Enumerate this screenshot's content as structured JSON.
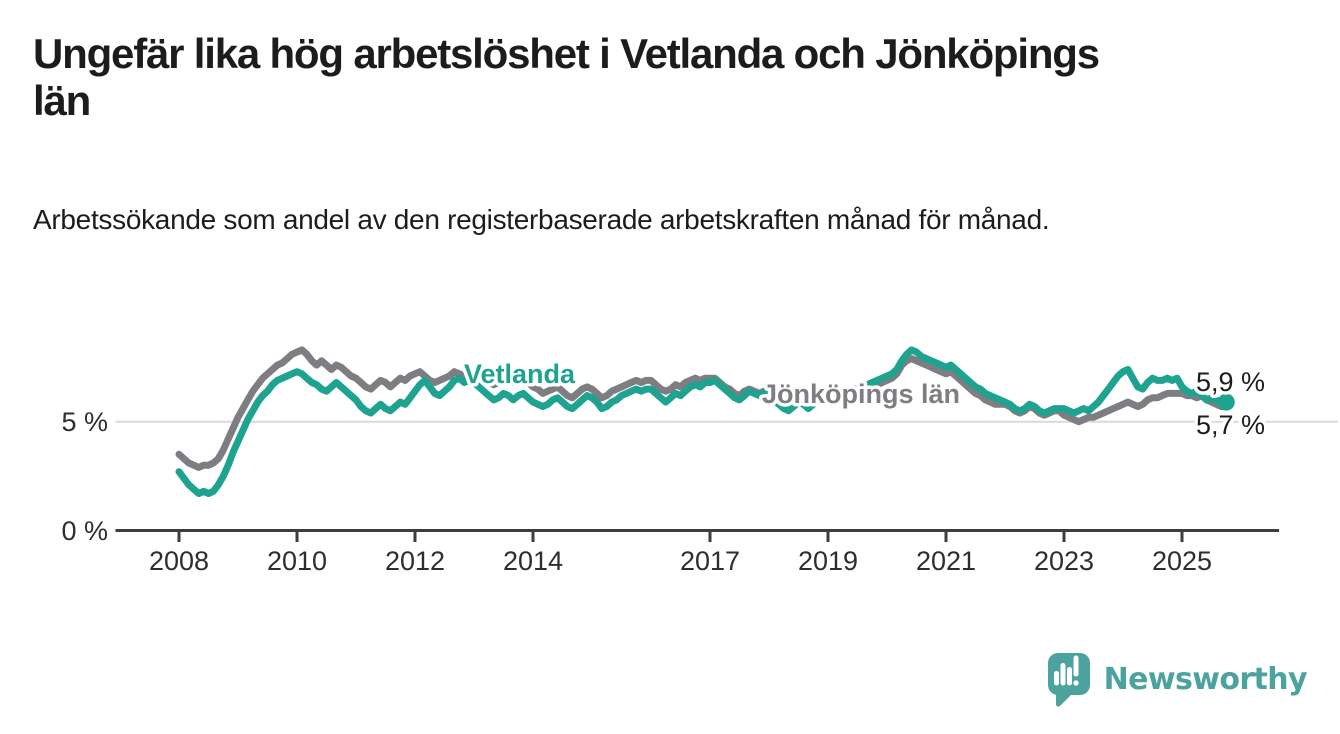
{
  "header": {
    "title": "Ungefär lika hög arbetslöshet i Vetlanda och Jönköpings län",
    "subtitle": "Arbetssökande som andel av den registerbaserade arbetskraften månad för månad."
  },
  "chart_data": {
    "type": "line",
    "unit": "%",
    "frequency": "monthly",
    "start": "2008-01",
    "end": "2025-10",
    "grid": "horizontal-gridline-at-5-only",
    "legend_position": "inline-labels-on-lines",
    "ylim": [
      0,
      9.2
    ],
    "x_axis_years": [
      2008,
      2025
    ],
    "x_ticks": [
      {
        "year": 2008,
        "label": "2008"
      },
      {
        "year": 2010,
        "label": "2010"
      },
      {
        "year": 2012,
        "label": "2012"
      },
      {
        "year": 2014,
        "label": "2014"
      },
      {
        "year": 2017,
        "label": "2017"
      },
      {
        "year": 2019,
        "label": "2019"
      },
      {
        "year": 2021,
        "label": "2021"
      },
      {
        "year": 2023,
        "label": "2023"
      },
      {
        "year": 2025,
        "label": "2025"
      }
    ],
    "y_ticks": [
      {
        "value": 0,
        "label": "0 %"
      },
      {
        "value": 5,
        "label": "5 %"
      }
    ],
    "series": [
      {
        "name": "Jönköpings län",
        "color": "#7d7d82",
        "end_label": "5,7 %",
        "values": [
          3.5,
          3.3,
          3.1,
          3.0,
          2.9,
          3.0,
          3.0,
          3.1,
          3.3,
          3.7,
          4.2,
          4.7,
          5.2,
          5.6,
          6.0,
          6.4,
          6.7,
          7.0,
          7.2,
          7.4,
          7.6,
          7.7,
          7.9,
          8.1,
          8.2,
          8.3,
          8.1,
          7.8,
          7.6,
          7.8,
          7.6,
          7.4,
          7.6,
          7.5,
          7.3,
          7.1,
          7.0,
          6.8,
          6.6,
          6.5,
          6.7,
          6.9,
          6.8,
          6.6,
          6.8,
          7.0,
          6.9,
          7.1,
          7.2,
          7.3,
          7.1,
          6.9,
          6.8,
          6.9,
          7.0,
          7.1,
          7.3,
          7.2,
          7.1,
          7.2,
          7.3,
          7.1,
          7.0,
          6.8,
          6.7,
          6.8,
          7.0,
          6.9,
          6.8,
          6.9,
          7.0,
          6.8,
          6.6,
          6.5,
          6.3,
          6.4,
          6.5,
          6.6,
          6.4,
          6.2,
          6.1,
          6.3,
          6.5,
          6.6,
          6.5,
          6.3,
          6.1,
          6.2,
          6.4,
          6.5,
          6.6,
          6.7,
          6.8,
          6.9,
          6.8,
          6.9,
          6.9,
          6.7,
          6.5,
          6.4,
          6.5,
          6.7,
          6.6,
          6.8,
          6.9,
          7.0,
          6.9,
          7.0,
          7.0,
          7.0,
          6.8,
          6.6,
          6.5,
          6.3,
          6.2,
          6.4,
          6.5,
          6.4,
          6.3,
          6.4,
          6.3,
          6.1,
          6.0,
          5.9,
          5.8,
          6.0,
          6.1,
          6.0,
          5.9,
          6.0,
          6.2,
          6.3,
          6.3,
          6.2,
          6.2,
          6.3,
          6.4,
          6.5,
          6.4,
          6.4,
          6.5,
          6.6,
          6.7,
          6.8,
          6.9,
          7.0,
          7.2,
          7.6,
          7.8,
          7.9,
          7.8,
          7.7,
          7.6,
          7.5,
          7.4,
          7.3,
          7.2,
          7.3,
          7.1,
          6.9,
          6.7,
          6.5,
          6.3,
          6.2,
          6.0,
          5.9,
          5.8,
          5.8,
          5.8,
          5.7,
          5.5,
          5.4,
          5.5,
          5.7,
          5.6,
          5.4,
          5.3,
          5.4,
          5.5,
          5.5,
          5.3,
          5.2,
          5.1,
          5.0,
          5.1,
          5.2,
          5.2,
          5.3,
          5.4,
          5.5,
          5.6,
          5.7,
          5.8,
          5.9,
          5.8,
          5.7,
          5.8,
          6.0,
          6.1,
          6.1,
          6.2,
          6.3,
          6.3,
          6.3,
          6.3,
          6.2,
          6.2,
          6.1,
          6.2,
          6.0,
          5.9,
          5.8,
          5.7,
          5.7
        ]
      },
      {
        "name": "Vetlanda",
        "color": "#1ea390",
        "end_label": "5,9 %",
        "values": [
          2.7,
          2.4,
          2.1,
          1.9,
          1.7,
          1.8,
          1.7,
          1.8,
          2.1,
          2.5,
          3.0,
          3.6,
          4.1,
          4.6,
          5.1,
          5.5,
          5.9,
          6.2,
          6.4,
          6.7,
          6.9,
          7.0,
          7.1,
          7.2,
          7.3,
          7.2,
          7.0,
          6.8,
          6.7,
          6.5,
          6.4,
          6.6,
          6.8,
          6.6,
          6.4,
          6.2,
          6.0,
          5.7,
          5.5,
          5.4,
          5.6,
          5.8,
          5.6,
          5.5,
          5.7,
          5.9,
          5.8,
          6.1,
          6.4,
          6.7,
          6.9,
          6.6,
          6.3,
          6.2,
          6.4,
          6.6,
          6.9,
          7.0,
          6.8,
          6.9,
          6.8,
          6.6,
          6.4,
          6.2,
          6.0,
          6.1,
          6.3,
          6.2,
          6.0,
          6.2,
          6.3,
          6.1,
          5.9,
          5.8,
          5.7,
          5.8,
          6.0,
          6.1,
          5.9,
          5.7,
          5.6,
          5.8,
          6.0,
          6.2,
          6.1,
          5.9,
          5.6,
          5.7,
          5.9,
          6.0,
          6.2,
          6.3,
          6.4,
          6.5,
          6.4,
          6.5,
          6.5,
          6.3,
          6.1,
          5.9,
          6.1,
          6.3,
          6.2,
          6.4,
          6.6,
          6.7,
          6.6,
          6.8,
          6.8,
          6.9,
          6.7,
          6.5,
          6.3,
          6.1,
          6.0,
          6.2,
          6.4,
          6.3,
          6.2,
          6.3,
          6.2,
          6.0,
          5.8,
          5.6,
          5.5,
          5.7,
          5.9,
          5.8,
          5.6,
          5.8,
          6.0,
          6.1,
          6.2,
          6.2,
          6.3,
          6.3,
          6.4,
          6.5,
          6.5,
          6.6,
          6.7,
          6.8,
          6.9,
          7.0,
          7.1,
          7.2,
          7.4,
          7.8,
          8.1,
          8.3,
          8.2,
          8.0,
          7.9,
          7.8,
          7.7,
          7.6,
          7.5,
          7.6,
          7.4,
          7.2,
          7.0,
          6.8,
          6.6,
          6.5,
          6.3,
          6.2,
          6.1,
          6.0,
          5.9,
          5.8,
          5.6,
          5.5,
          5.6,
          5.8,
          5.7,
          5.5,
          5.4,
          5.5,
          5.6,
          5.6,
          5.6,
          5.5,
          5.4,
          5.5,
          5.6,
          5.5,
          5.7,
          5.9,
          6.2,
          6.5,
          6.8,
          7.1,
          7.3,
          7.4,
          7.0,
          6.6,
          6.5,
          6.8,
          7.0,
          6.9,
          6.9,
          7.0,
          6.9,
          7.0,
          6.6,
          6.4,
          6.3,
          6.4,
          6.2,
          6.0,
          6.1,
          6.0,
          5.9,
          5.9
        ]
      }
    ],
    "end_dot_series": "Vetlanda",
    "last_values": {
      "Vetlanda": 5.9,
      "Jönköpings län": 5.7
    }
  },
  "footer": {
    "brand": "Newsworthy",
    "logo_icon": "bar-chart-speech-bubble-icon"
  }
}
